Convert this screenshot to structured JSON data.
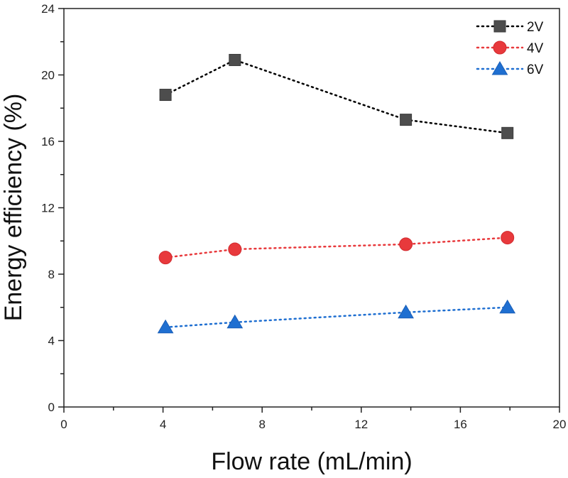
{
  "chart_data": {
    "type": "line",
    "title": "",
    "xlabel": "Flow rate (mL/min)",
    "ylabel": "Energy efficiency (%)",
    "xlim": [
      0,
      20
    ],
    "ylim": [
      0,
      24
    ],
    "xticks": [
      0,
      4,
      8,
      12,
      16,
      20
    ],
    "yticks": [
      0,
      4,
      8,
      12,
      16,
      20,
      24
    ],
    "xtick_labels": [
      "0",
      "4",
      "8",
      "12",
      "16",
      "20"
    ],
    "ytick_labels": [
      "0",
      "4",
      "8",
      "12",
      "16",
      "20",
      "24"
    ],
    "grid": false,
    "legend_position": "top-right",
    "series": [
      {
        "name": "2V",
        "marker": "square",
        "color": "#4d4d4d",
        "line_color": "#000000",
        "x": [
          4.1,
          6.9,
          13.8,
          17.9
        ],
        "y": [
          18.8,
          20.9,
          17.3,
          16.5
        ]
      },
      {
        "name": "4V",
        "marker": "circle",
        "color": "#e8393c",
        "line_color": "#e8393c",
        "x": [
          4.1,
          6.9,
          13.8,
          17.9
        ],
        "y": [
          9.0,
          9.5,
          9.8,
          10.2
        ]
      },
      {
        "name": "6V",
        "marker": "triangle",
        "color": "#1f6fd1",
        "line_color": "#1f6fd1",
        "x": [
          4.1,
          6.9,
          13.8,
          17.9
        ],
        "y": [
          4.8,
          5.1,
          5.7,
          6.0
        ]
      }
    ]
  }
}
